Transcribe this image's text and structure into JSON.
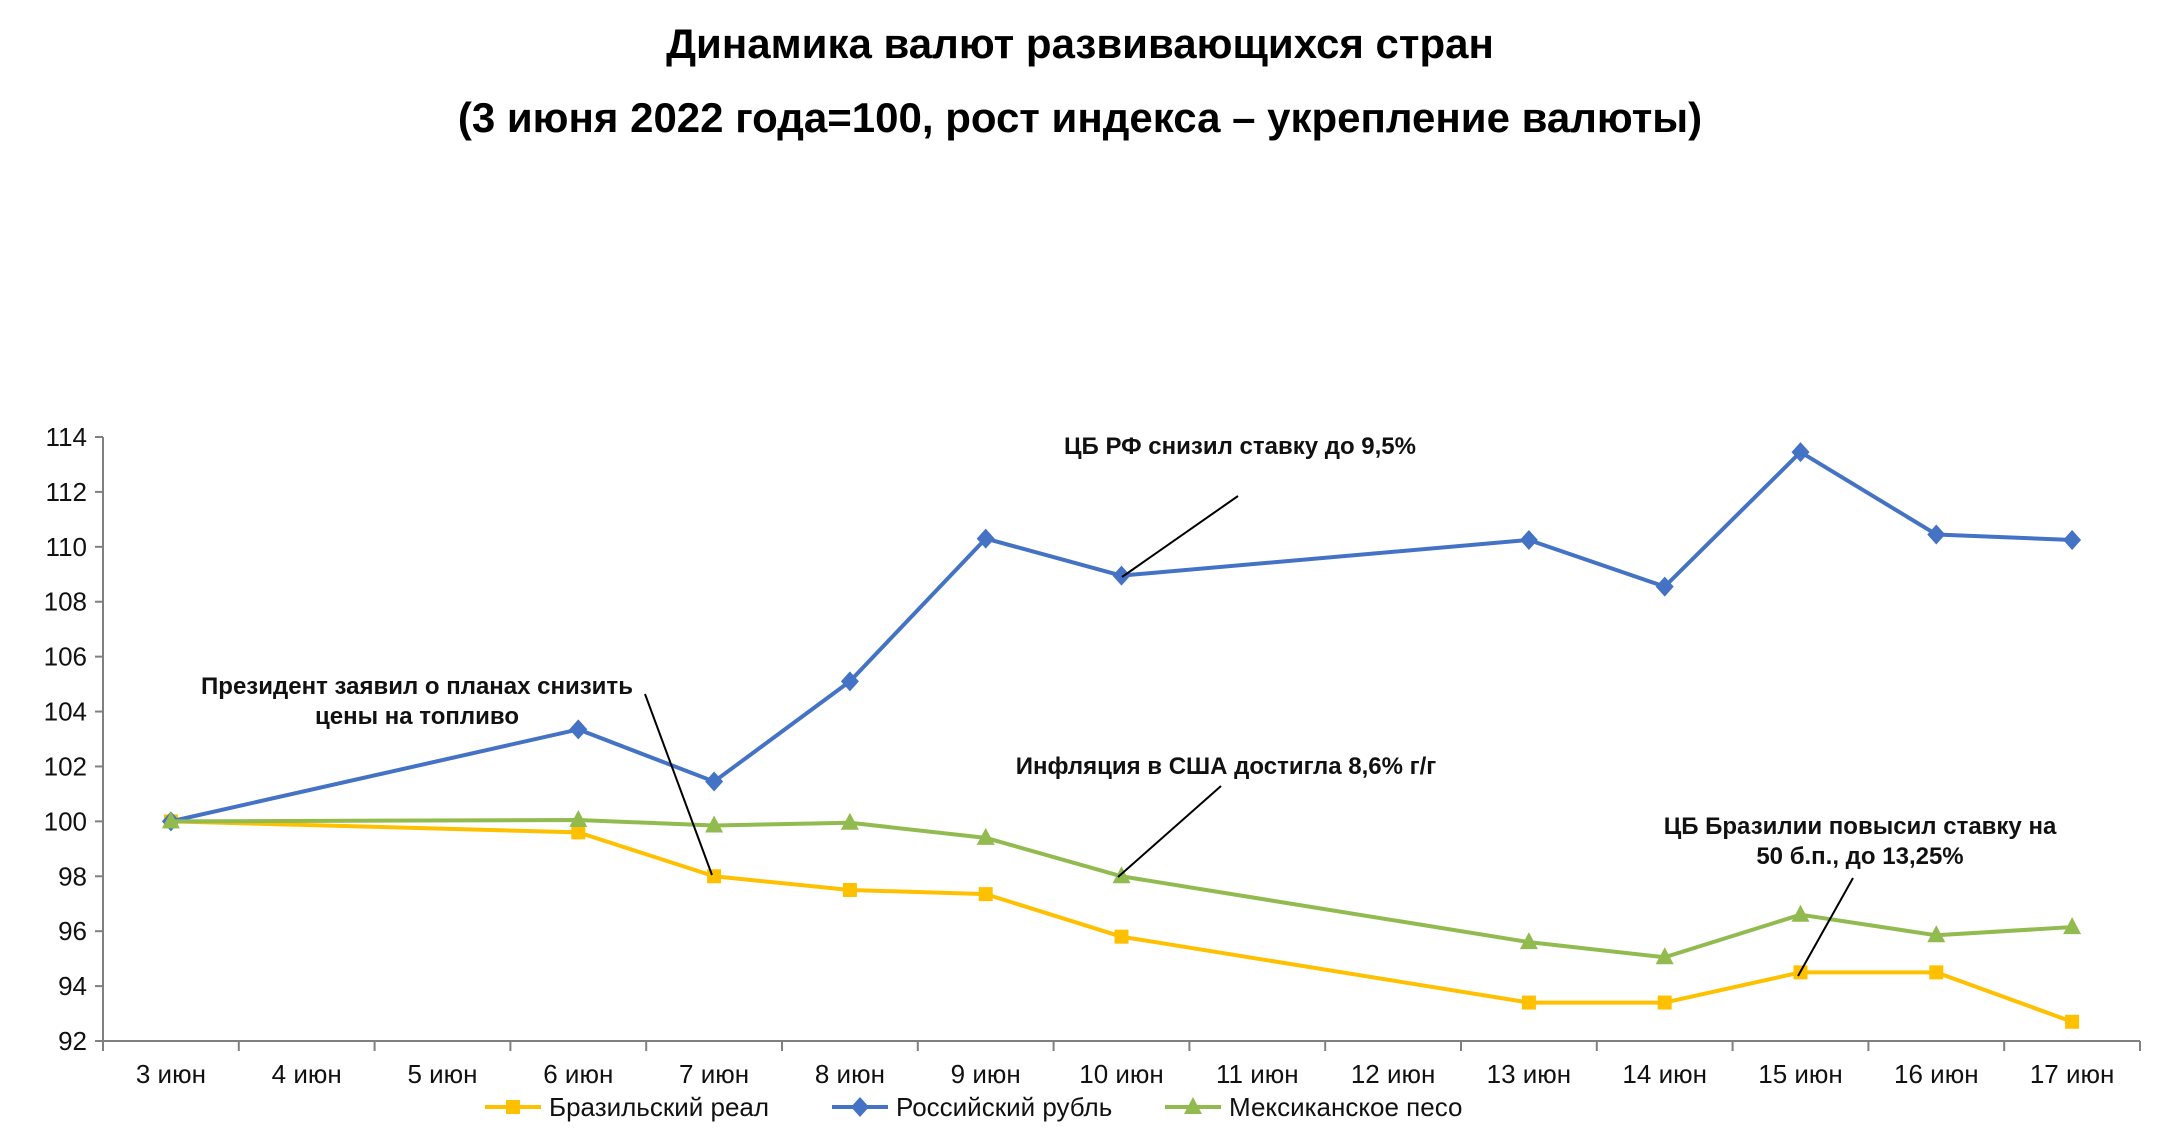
{
  "chart_data": {
    "type": "line",
    "title": "Динамика валют развивающихся стран",
    "subtitle": "(3 июня 2022 года=100, рост индекса – укрепление валюты)",
    "xlabel": "",
    "ylabel": "",
    "categories": [
      "3 июн",
      "4 июн",
      "5 июн",
      "6 июн",
      "7 июн",
      "8 июн",
      "9 июн",
      "10 июн",
      "11 июн",
      "12 июн",
      "13 июн",
      "14 июн",
      "15 июн",
      "16 июн",
      "17 июн"
    ],
    "ylim": [
      92,
      114
    ],
    "yticks": [
      "92",
      "94",
      "96",
      "98",
      "100",
      "102",
      "104",
      "106",
      "108",
      "110",
      "112",
      "114"
    ],
    "grid": false,
    "legend_position": "bottom",
    "series": [
      {
        "name": "Бразильский реал",
        "color": "#FFC000",
        "marker": "square",
        "values": [
          100.0,
          null,
          null,
          99.6,
          98.0,
          97.5,
          97.35,
          95.8,
          null,
          null,
          93.4,
          93.4,
          94.5,
          94.5,
          92.7
        ]
      },
      {
        "name": "Российский рубль",
        "color": "#4472C4",
        "marker": "diamond",
        "values": [
          100.0,
          null,
          null,
          103.35,
          101.45,
          105.1,
          110.3,
          108.95,
          null,
          null,
          110.25,
          108.55,
          113.45,
          110.45,
          110.25
        ]
      },
      {
        "name": "Мексиканское песо",
        "color": "#92BB4F",
        "marker": "triangle",
        "values": [
          100.0,
          null,
          null,
          100.05,
          99.85,
          99.95,
          99.4,
          98.0,
          null,
          null,
          95.6,
          95.05,
          96.6,
          95.85,
          96.15
        ]
      }
    ],
    "annotations": [
      {
        "lines": [
          "Президент заявил о планах снизить",
          "цены на топливо"
        ],
        "target_category": "7 июн",
        "target_series": "Бразильский реал"
      },
      {
        "lines": [
          "ЦБ РФ снизил ставку до 9,5%"
        ],
        "target_category": "10 июн",
        "target_series": "Российский рубль"
      },
      {
        "lines": [
          "Инфляция в США достигла 8,6% г/г"
        ],
        "target_category": "10 июн",
        "target_series": "Мексиканское песо"
      },
      {
        "lines": [
          "ЦБ Бразилии повысил ставку на",
          "50 б.п., до 13,25%"
        ],
        "target_category": "15 июн",
        "target_series": "Бразильский реал"
      }
    ]
  }
}
